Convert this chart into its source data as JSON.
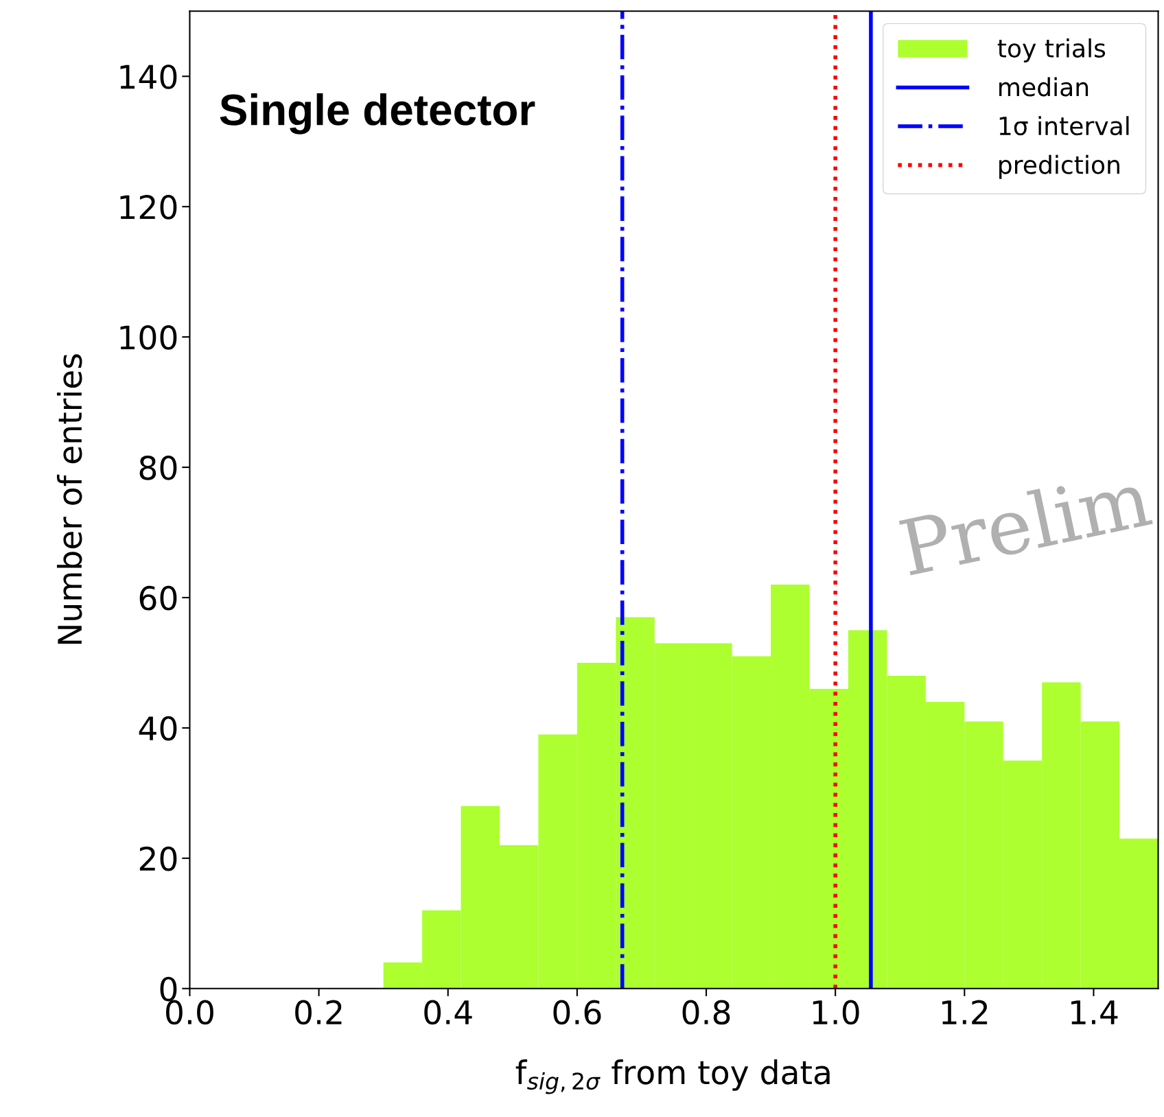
{
  "chart_data": {
    "type": "histogram",
    "title": "Single detector",
    "xlabel": "f$_{sig,2σ}$ from toy data",
    "ylabel": "Number of entries",
    "bins": [
      0.3,
      0.36,
      0.42,
      0.48,
      0.54,
      0.6,
      0.66,
      0.72,
      0.78,
      0.84,
      0.9,
      0.96,
      1.02,
      1.08,
      1.14,
      1.2,
      1.26,
      1.32,
      1.38,
      1.44,
      1.5
    ],
    "series": [
      {
        "name": "toy trials",
        "color": "#adff2f",
        "values": [
          4,
          12,
          28,
          22,
          39,
          50,
          57,
          53,
          53,
          51,
          62,
          46,
          55,
          48,
          44,
          41,
          35,
          47,
          41,
          23
        ]
      },
      {
        "name": "median",
        "type": "line",
        "color": "#0000ff",
        "line_style": "solid",
        "x": [
          1.055,
          1.055
        ],
        "values": [
          0,
          150
        ]
      },
      {
        "name": "1σ interval",
        "type": "line",
        "color": "#0000ff",
        "line_style": "dashdot",
        "x": [
          0.67,
          0.67
        ],
        "values": [
          0,
          150
        ]
      },
      {
        "name": "prediction",
        "type": "line",
        "color": "#ff0000",
        "line_style": "dotted",
        "x": [
          1.0,
          1.0
        ],
        "values": [
          0,
          150
        ]
      }
    ],
    "annotations": [
      "Prelim"
    ],
    "xlim": [
      0,
      1.5
    ],
    "xticks": [
      {
        "value": 0,
        "label": "0.0"
      },
      {
        "value": 0.2,
        "label": "0.2"
      },
      {
        "value": 0.4,
        "label": "0.4"
      },
      {
        "value": 0.6,
        "label": "0.6"
      },
      {
        "value": 0.8,
        "label": "0.8"
      },
      {
        "value": 1.0,
        "label": "1.0"
      },
      {
        "value": 1.2,
        "label": "1.2"
      },
      {
        "value": 1.4,
        "label": "1.4"
      }
    ],
    "ylim": [
      0,
      150
    ],
    "yticks": [
      0,
      20,
      40,
      60,
      80,
      100,
      120,
      140
    ],
    "grid": false,
    "legend": "top right"
  }
}
